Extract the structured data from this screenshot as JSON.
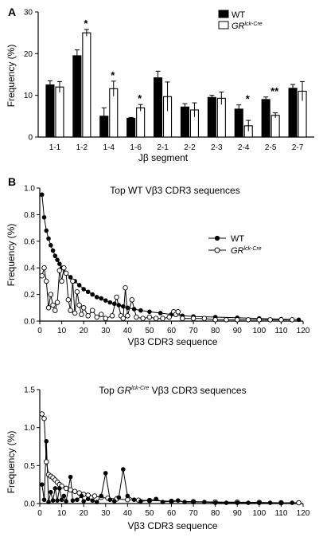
{
  "chart_data": [
    {
      "panel": "A",
      "type": "bar",
      "xlabel": "Jβ segment",
      "ylabel": "Frequency (%)",
      "ylim": [
        0,
        30
      ],
      "yticks": [
        "0",
        "10",
        "20",
        "30"
      ],
      "categories": [
        "1-1",
        "1-2",
        "1-4",
        "1-6",
        "2-1",
        "2-2",
        "2-3",
        "2-4",
        "2-5",
        "2-7"
      ],
      "legend_position": "top-right",
      "series": [
        {
          "name": "WT",
          "fill": "#000000",
          "values": [
            12.5,
            19.5,
            5.0,
            4.5,
            14.2,
            7.2,
            9.5,
            6.7,
            9.0,
            11.7
          ],
          "errors": [
            1.0,
            1.4,
            2.0,
            0.2,
            1.6,
            0.8,
            0.5,
            1.0,
            0.6,
            0.9
          ]
        },
        {
          "name": "GR",
          "name_sup": "lck-Cre",
          "fill": "#ffffff",
          "values": [
            12.0,
            25.0,
            11.6,
            7.0,
            9.7,
            6.5,
            9.3,
            2.7,
            5.2,
            11.0
          ],
          "errors": [
            1.3,
            0.8,
            1.8,
            0.8,
            3.5,
            1.7,
            1.5,
            1.3,
            0.6,
            2.3
          ]
        }
      ],
      "annotations": [
        "",
        "*",
        "*",
        "*",
        "",
        "",
        "",
        "*",
        "**",
        ""
      ]
    },
    {
      "panel": "B",
      "type": "line",
      "title": "Top WT Vβ3 CDR3 sequences",
      "xlabel": "Vβ3 CDR3 sequence",
      "ylabel": "Frequency (%)",
      "xlim": [
        0,
        120
      ],
      "ylim": [
        0,
        1.0
      ],
      "xticks": [
        "0",
        "10",
        "20",
        "30",
        "40",
        "50",
        "60",
        "70",
        "80",
        "90",
        "100",
        "110",
        "120"
      ],
      "yticks": [
        "0.0",
        "0.2",
        "0.4",
        "0.6",
        "0.8",
        "1.0"
      ],
      "legend_position": "right",
      "series": [
        {
          "name": "WT",
          "marker": "filled",
          "points": [
            [
              1,
              0.95
            ],
            [
              2,
              0.78
            ],
            [
              3,
              0.68
            ],
            [
              4,
              0.62
            ],
            [
              5,
              0.57
            ],
            [
              6,
              0.53
            ],
            [
              7,
              0.49
            ],
            [
              8,
              0.46
            ],
            [
              9,
              0.43
            ],
            [
              10,
              0.4
            ],
            [
              12,
              0.36
            ],
            [
              14,
              0.33
            ],
            [
              16,
              0.3
            ],
            [
              18,
              0.27
            ],
            [
              20,
              0.24
            ],
            [
              22,
              0.22
            ],
            [
              24,
              0.2
            ],
            [
              26,
              0.18
            ],
            [
              28,
              0.17
            ],
            [
              30,
              0.155
            ],
            [
              32,
              0.14
            ],
            [
              34,
              0.13
            ],
            [
              36,
              0.12
            ],
            [
              38,
              0.11
            ],
            [
              40,
              0.1
            ],
            [
              43,
              0.09
            ],
            [
              46,
              0.08
            ],
            [
              50,
              0.07
            ],
            [
              55,
              0.06
            ],
            [
              60,
              0.05
            ],
            [
              65,
              0.04
            ],
            [
              70,
              0.035
            ],
            [
              80,
              0.03
            ],
            [
              90,
              0.025
            ],
            [
              100,
              0.02
            ],
            [
              110,
              0.015
            ],
            [
              118,
              0.01
            ]
          ]
        },
        {
          "name": "GR",
          "name_sup": "lck-Cre",
          "marker": "open",
          "points": [
            [
              1,
              0.34
            ],
            [
              2,
              0.4
            ],
            [
              3,
              0.3
            ],
            [
              4,
              0.1
            ],
            [
              5,
              0.2
            ],
            [
              6,
              0.12
            ],
            [
              7,
              0.08
            ],
            [
              8,
              0.14
            ],
            [
              9,
              0.38
            ],
            [
              10,
              0.3
            ],
            [
              11,
              0.4
            ],
            [
              12,
              0.36
            ],
            [
              13,
              0.16
            ],
            [
              14,
              0.08
            ],
            [
              15,
              0.3
            ],
            [
              16,
              0.06
            ],
            [
              17,
              0.22
            ],
            [
              18,
              0.12
            ],
            [
              19,
              0.05
            ],
            [
              20,
              0.1
            ],
            [
              22,
              0.04
            ],
            [
              24,
              0.08
            ],
            [
              26,
              0.03
            ],
            [
              28,
              0.05
            ],
            [
              30,
              0.02
            ],
            [
              33,
              0.04
            ],
            [
              35,
              0.18
            ],
            [
              37,
              0.04
            ],
            [
              38,
              0.02
            ],
            [
              39,
              0.25
            ],
            [
              40,
              0.04
            ],
            [
              42,
              0.16
            ],
            [
              44,
              0.03
            ],
            [
              47,
              0.02
            ],
            [
              50,
              0.03
            ],
            [
              53,
              0.02
            ],
            [
              56,
              0.02
            ],
            [
              59,
              0.03
            ],
            [
              61,
              0.07
            ],
            [
              62,
              0.05
            ],
            [
              63,
              0.07
            ],
            [
              65,
              0.02
            ],
            [
              70,
              0.02
            ],
            [
              75,
              0.02
            ],
            [
              80,
              0.01
            ],
            [
              85,
              0.01
            ],
            [
              90,
              0.01
            ],
            [
              95,
              0.01
            ],
            [
              100,
              0.01
            ],
            [
              105,
              0.01
            ],
            [
              110,
              0.01
            ],
            [
              115,
              0.01
            ]
          ]
        }
      ]
    },
    {
      "panel": "B2",
      "type": "line",
      "title_prefix": "Top ",
      "title_italic": "GR",
      "title_sup": "lck-Cre",
      "title_suffix": " Vβ3 CDR3 sequences",
      "xlabel": "Vβ3 CDR3 sequence",
      "ylabel": "Frequency (%)",
      "xlim": [
        0,
        120
      ],
      "ylim": [
        0,
        1.5
      ],
      "xticks": [
        "0",
        "10",
        "20",
        "30",
        "40",
        "50",
        "60",
        "70",
        "80",
        "90",
        "100",
        "110",
        "120"
      ],
      "yticks": [
        "0.0",
        "0.5",
        "1.0",
        "1.5"
      ],
      "series": [
        {
          "name": "GR",
          "marker": "open",
          "points": [
            [
              1,
              1.18
            ],
            [
              2,
              1.12
            ],
            [
              3,
              0.55
            ],
            [
              4,
              0.38
            ],
            [
              5,
              0.36
            ],
            [
              6,
              0.34
            ],
            [
              7,
              0.31
            ],
            [
              8,
              0.28
            ],
            [
              9,
              0.25
            ],
            [
              10,
              0.23
            ],
            [
              12,
              0.2
            ],
            [
              14,
              0.18
            ],
            [
              16,
              0.16
            ],
            [
              18,
              0.14
            ],
            [
              20,
              0.12
            ],
            [
              22,
              0.11
            ],
            [
              25,
              0.1
            ],
            [
              28,
              0.08
            ],
            [
              31,
              0.07
            ],
            [
              35,
              0.06
            ],
            [
              40,
              0.05
            ],
            [
              45,
              0.045
            ],
            [
              50,
              0.04
            ],
            [
              60,
              0.03
            ],
            [
              70,
              0.025
            ],
            [
              80,
              0.02
            ],
            [
              90,
              0.018
            ],
            [
              100,
              0.015
            ],
            [
              110,
              0.01
            ],
            [
              118,
              0.01
            ]
          ]
        },
        {
          "name": "WT",
          "marker": "filled",
          "points": [
            [
              1,
              0.25
            ],
            [
              2,
              0.05
            ],
            [
              3,
              0.82
            ],
            [
              4,
              0.02
            ],
            [
              5,
              0.15
            ],
            [
              6,
              0.04
            ],
            [
              7,
              0.2
            ],
            [
              8,
              0.04
            ],
            [
              9,
              0.2
            ],
            [
              10,
              0.05
            ],
            [
              11,
              0.1
            ],
            [
              12,
              0.03
            ],
            [
              14,
              0.35
            ],
            [
              15,
              0.04
            ],
            [
              17,
              0.05
            ],
            [
              19,
              0.1
            ],
            [
              20,
              0.03
            ],
            [
              22,
              0.06
            ],
            [
              24,
              0.04
            ],
            [
              26,
              0.02
            ],
            [
              28,
              0.1
            ],
            [
              30,
              0.4
            ],
            [
              32,
              0.05
            ],
            [
              34,
              0.03
            ],
            [
              36,
              0.08
            ],
            [
              38,
              0.45
            ],
            [
              40,
              0.1
            ],
            [
              43,
              0.05
            ],
            [
              46,
              0.03
            ],
            [
              50,
              0.04
            ],
            [
              53,
              0.06
            ],
            [
              56,
              0.02
            ],
            [
              60,
              0.03
            ],
            [
              63,
              0.04
            ],
            [
              66,
              0.02
            ],
            [
              70,
              0.02
            ],
            [
              75,
              0.02
            ],
            [
              80,
              0.01
            ],
            [
              85,
              0.01
            ],
            [
              90,
              0.01
            ],
            [
              95,
              0.01
            ],
            [
              100,
              0.01
            ],
            [
              105,
              0.01
            ],
            [
              110,
              0.01
            ],
            [
              115,
              0.01
            ]
          ]
        }
      ]
    }
  ]
}
